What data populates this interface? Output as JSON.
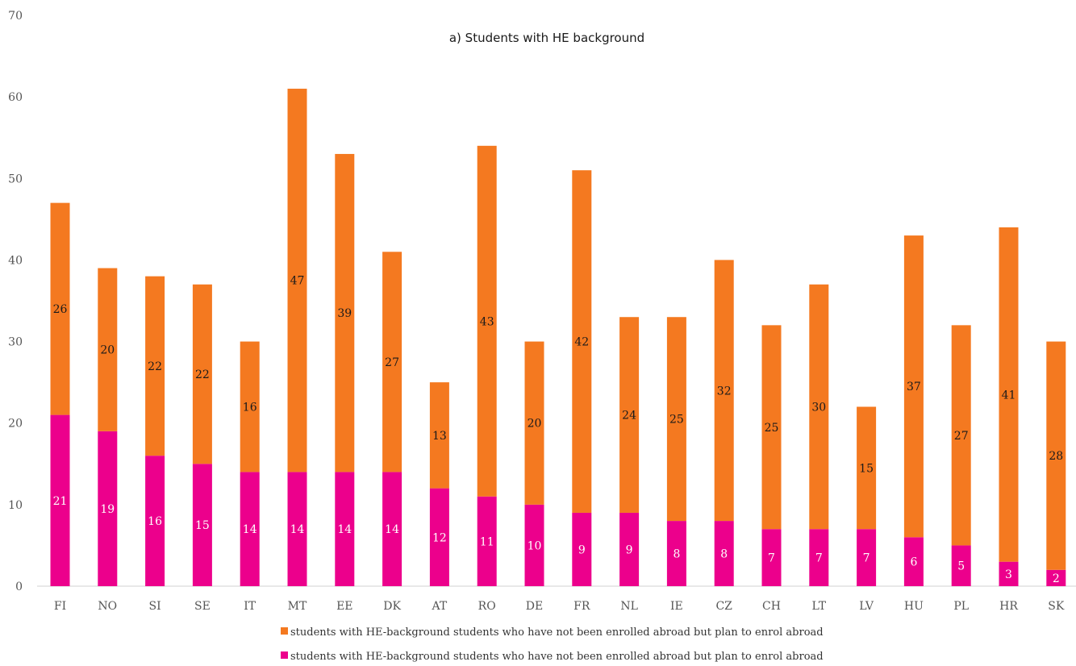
{
  "chart_data": {
    "type": "bar",
    "stacked": true,
    "title": "a) Students with HE background",
    "xlabel": "",
    "ylabel": "",
    "ylim": [
      0,
      70
    ],
    "yticks": [
      0,
      10,
      20,
      30,
      40,
      50,
      60,
      70
    ],
    "grid": false,
    "legend_position": "bottom",
    "categories": [
      "FI",
      "NO",
      "SI",
      "SE",
      "IT",
      "MT",
      "EE",
      "DK",
      "AT",
      "RO",
      "DE",
      "FR",
      "NL",
      "IE",
      "CZ",
      "CH",
      "LT",
      "LV",
      "HU",
      "PL",
      "HR",
      "SK"
    ],
    "series": [
      {
        "name": "students with HE-background students who have not been enrolled abroad but plan to enrol abroad",
        "color": "#ec008c",
        "label_color": "#ffffff",
        "values": [
          21,
          19,
          16,
          15,
          14,
          14,
          14,
          14,
          12,
          11,
          10,
          9,
          9,
          8,
          8,
          7,
          7,
          7,
          6,
          5,
          3,
          2
        ]
      },
      {
        "name": "students with HE-background students who have not been enrolled abroad but plan to enrol abroad",
        "color": "#f47920",
        "label_color": "#1a1a1a",
        "values": [
          26,
          20,
          22,
          22,
          16,
          47,
          39,
          27,
          13,
          43,
          20,
          42,
          24,
          25,
          32,
          25,
          30,
          15,
          37,
          27,
          41,
          28
        ]
      }
    ],
    "legend_order": [
      1,
      0
    ]
  }
}
